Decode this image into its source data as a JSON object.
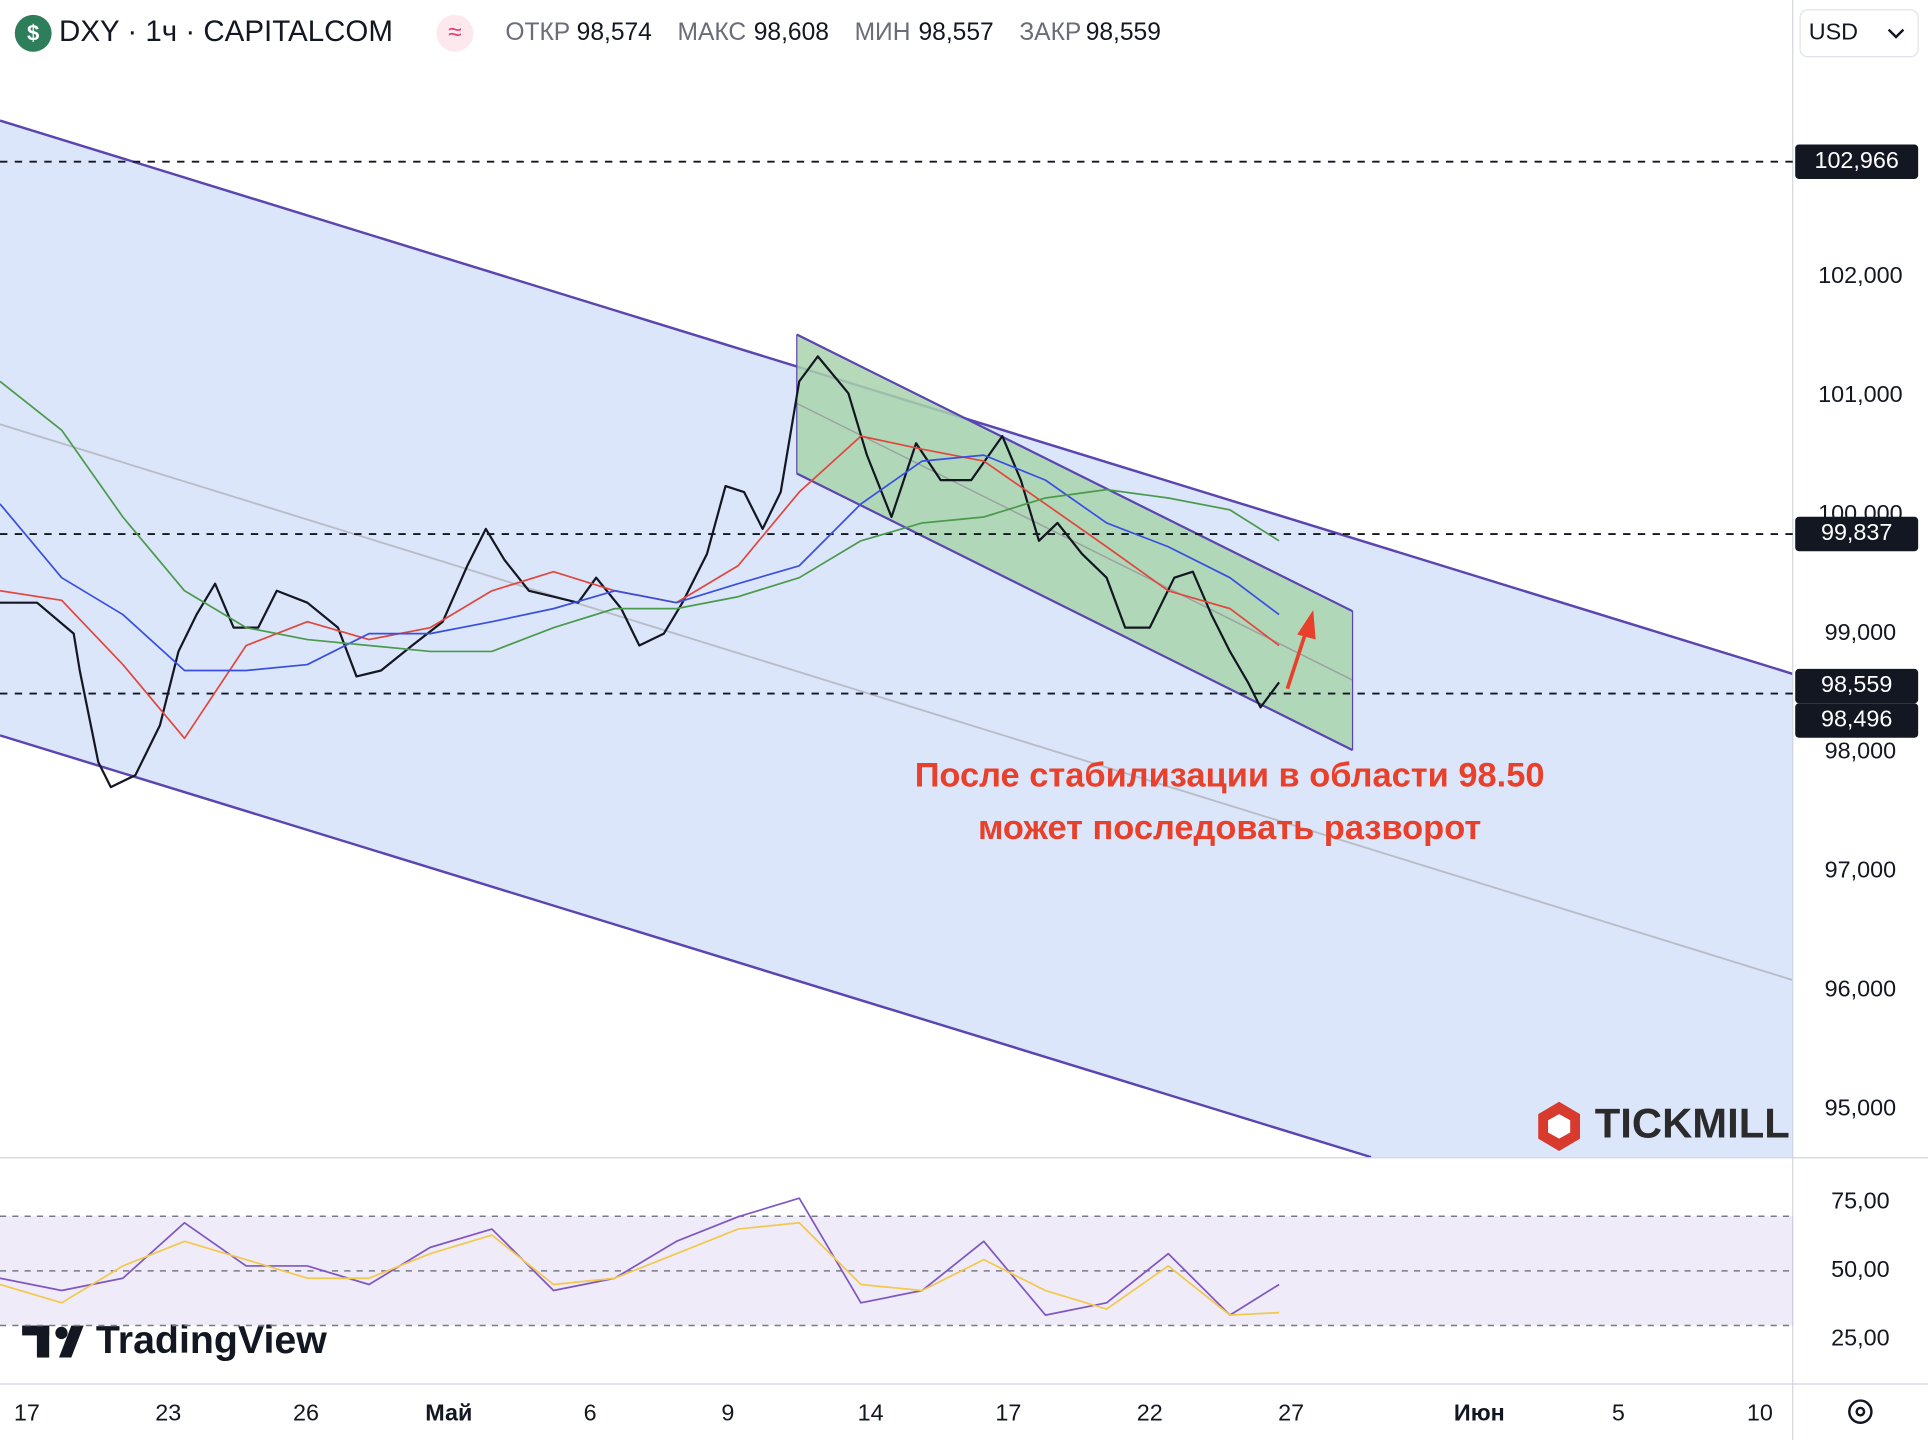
{
  "chart_data": [
    {
      "type": "line",
      "title": "DXY · 1ч · CAPITALCOM",
      "ohlc": {
        "names": [
          "ОТКР",
          "МАКС",
          "МИН",
          "ЗАКР"
        ],
        "values": [
          98.574,
          98.608,
          98.557,
          98.559
        ],
        "value_labels": [
          "98,574",
          "98,608",
          "98,557",
          "98,559"
        ]
      },
      "currency": "USD",
      "annotation": [
        "После стабилизации в области 98.50",
        "может последовать разворот"
      ],
      "watermarks": [
        "TICKMILL",
        "TradingView"
      ],
      "xlim": [
        0,
        38.67
      ],
      "ylim": [
        94.6,
        103.87
      ],
      "yticks": [
        {
          "value": 95,
          "label": "95,000"
        },
        {
          "value": 96,
          "label": "96,000"
        },
        {
          "value": 97,
          "label": "97,000"
        },
        {
          "value": 98,
          "label": "98,000"
        },
        {
          "value": 99,
          "label": "99,000"
        },
        {
          "value": 100,
          "label": "100,000"
        },
        {
          "value": 101,
          "label": "101,000"
        },
        {
          "value": 102,
          "label": "102,000"
        }
      ],
      "levels": {
        "values": [
          102.966,
          99.837,
          98.496
        ],
        "value_labels": [
          "102,966",
          "99,837",
          "98,496"
        ]
      },
      "last_price": {
        "value": 98.559,
        "label": "98,559"
      },
      "series": [
        {
          "color": "#131722",
          "x": [
            0,
            0.8,
            1.59,
            1.72,
            2.12,
            2.39,
            2.92,
            3.45,
            3.85,
            4.24,
            4.64,
            5.04,
            5.57,
            5.97,
            6.63,
            7.29,
            7.69,
            8.22,
            8.89,
            9.55,
            10.08,
            10.48,
            10.88,
            11.41,
            11.94,
            12.47,
            12.86,
            13.4,
            13.79,
            14.32,
            14.72,
            15.25,
            15.65,
            16.05,
            16.45,
            16.84,
            17.24,
            17.64,
            18.3,
            18.7,
            19.23,
            19.76,
            20.29,
            20.95,
            21.62,
            22.02,
            22.41,
            22.81,
            23.34,
            23.87,
            24.27,
            24.8,
            25.33,
            25.73,
            26.13,
            26.53,
            26.92,
            27.19,
            27.59
          ],
          "values": [
            99.26,
            99.26,
            99.0,
            98.69,
            97.92,
            97.71,
            97.81,
            98.23,
            98.85,
            99.16,
            99.42,
            99.05,
            99.05,
            99.36,
            99.26,
            99.05,
            98.64,
            98.69,
            98.9,
            99.1,
            99.57,
            99.88,
            99.62,
            99.36,
            99.31,
            99.26,
            99.47,
            99.21,
            98.9,
            99.0,
            99.26,
            99.67,
            100.24,
            100.19,
            99.88,
            100.19,
            101.12,
            101.33,
            101.02,
            100.5,
            99.98,
            100.6,
            100.29,
            100.29,
            100.66,
            100.29,
            99.78,
            99.93,
            99.67,
            99.47,
            99.05,
            99.05,
            99.47,
            99.52,
            99.16,
            98.85,
            98.59,
            98.38,
            98.59
          ]
        },
        {
          "color": "#e0483e",
          "x": [
            0,
            1.33,
            2.65,
            3.98,
            5.31,
            6.63,
            7.96,
            9.28,
            10.61,
            11.94,
            13.26,
            14.59,
            15.92,
            17.24,
            18.57,
            19.89,
            21.22,
            22.55,
            23.87,
            25.2,
            26.53,
            27.59
          ],
          "values": [
            99.36,
            99.28,
            98.74,
            98.12,
            98.9,
            99.1,
            98.95,
            99.05,
            99.36,
            99.52,
            99.36,
            99.26,
            99.57,
            100.19,
            100.66,
            100.55,
            100.45,
            100.09,
            99.73,
            99.36,
            99.21,
            98.9
          ]
        },
        {
          "color": "#3a4fe0",
          "x": [
            0,
            1.33,
            2.65,
            3.98,
            5.31,
            6.63,
            7.96,
            9.28,
            10.61,
            11.94,
            13.26,
            14.59,
            15.92,
            17.24,
            18.57,
            19.89,
            21.22,
            22.55,
            23.87,
            25.2,
            26.53,
            27.59
          ],
          "values": [
            100.09,
            99.47,
            99.16,
            98.69,
            98.69,
            98.74,
            99.0,
            99.0,
            99.1,
            99.21,
            99.36,
            99.26,
            99.42,
            99.57,
            100.09,
            100.45,
            100.5,
            100.29,
            99.93,
            99.73,
            99.47,
            99.16
          ]
        },
        {
          "color": "#4c9a4c",
          "x": [
            0,
            1.33,
            2.65,
            3.98,
            5.31,
            6.63,
            7.96,
            9.28,
            10.61,
            11.94,
            13.26,
            14.59,
            15.92,
            17.24,
            18.57,
            19.89,
            21.22,
            22.55,
            23.87,
            25.2,
            26.53,
            27.59
          ],
          "values": [
            101.12,
            100.71,
            99.98,
            99.36,
            99.05,
            98.95,
            98.9,
            98.85,
            98.85,
            99.05,
            99.21,
            99.21,
            99.31,
            99.47,
            99.78,
            99.93,
            99.98,
            100.14,
            100.21,
            100.14,
            100.04,
            99.78
          ]
        }
      ]
    },
    {
      "type": "line",
      "xlim": [
        0,
        38.67
      ],
      "ylim": [
        8.8,
        91.2
      ],
      "yticks": [
        {
          "value": 25,
          "label": "25,00"
        },
        {
          "value": 50,
          "label": "50,00"
        },
        {
          "value": 75,
          "label": "75,00"
        }
      ],
      "levels": [
        70,
        50,
        30
      ],
      "band": [
        30,
        70
      ],
      "xticks": [
        {
          "value": 0.58,
          "label": "17"
        },
        {
          "value": 3.63,
          "label": "23"
        },
        {
          "value": 6.6,
          "label": "26"
        },
        {
          "value": 9.68,
          "label": "Май"
        },
        {
          "value": 12.73,
          "label": "6"
        },
        {
          "value": 15.7,
          "label": "9"
        },
        {
          "value": 18.78,
          "label": "14"
        },
        {
          "value": 21.75,
          "label": "17"
        },
        {
          "value": 24.8,
          "label": "22"
        },
        {
          "value": 27.85,
          "label": "27"
        },
        {
          "value": 31.91,
          "label": "Июн"
        },
        {
          "value": 34.91,
          "label": "5"
        },
        {
          "value": 37.96,
          "label": "10"
        }
      ],
      "series": [
        {
          "color": "#7e57c2",
          "x": [
            0,
            1.33,
            2.65,
            3.98,
            5.31,
            6.63,
            7.96,
            9.28,
            10.61,
            11.94,
            13.26,
            14.59,
            15.92,
            17.24,
            18.57,
            19.89,
            21.22,
            22.55,
            23.87,
            25.2,
            26.53,
            27.59
          ],
          "values": [
            47.3,
            42.8,
            47.3,
            67.6,
            51.8,
            51.8,
            45.0,
            58.6,
            65.3,
            42.8,
            47.3,
            60.8,
            69.8,
            76.6,
            38.3,
            42.8,
            60.8,
            33.8,
            38.3,
            56.3,
            33.8,
            45.0
          ]
        },
        {
          "color": "#f2c94c",
          "x": [
            0,
            1.33,
            2.65,
            3.98,
            5.31,
            6.63,
            7.96,
            9.28,
            10.61,
            11.94,
            13.26,
            14.59,
            15.92,
            17.24,
            18.57,
            19.89,
            21.22,
            22.55,
            23.87,
            25.2,
            26.53,
            27.59
          ],
          "values": [
            45.0,
            38.3,
            51.8,
            60.8,
            54.1,
            47.3,
            47.3,
            56.3,
            63.1,
            45.0,
            47.3,
            56.3,
            65.3,
            67.6,
            45.0,
            42.8,
            54.1,
            42.8,
            36.0,
            51.8,
            33.8,
            34.7
          ]
        }
      ]
    }
  ]
}
